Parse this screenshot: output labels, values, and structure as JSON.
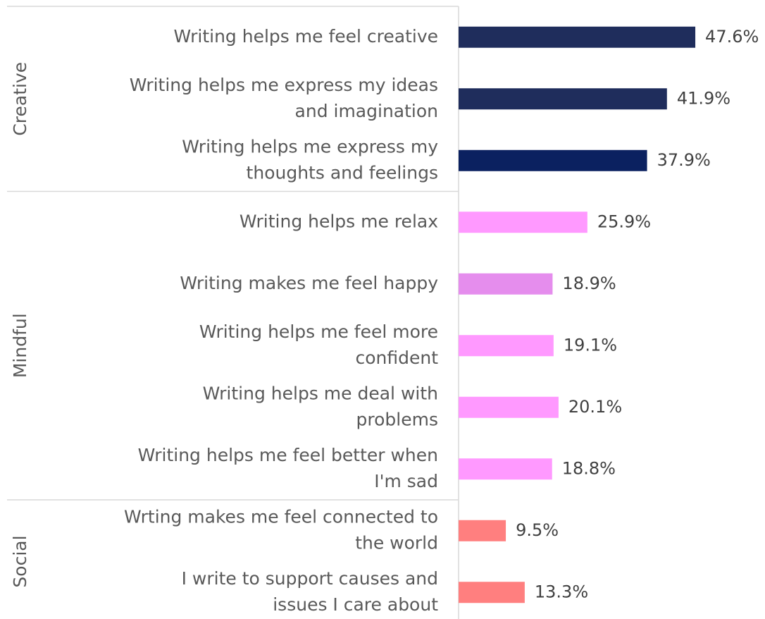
{
  "chart_data": {
    "type": "bar",
    "orientation": "horizontal",
    "title": "",
    "xlabel": "",
    "ylabel": "",
    "value_suffix": "%",
    "xlim": [
      0,
      50
    ],
    "grid": false,
    "legend": "none",
    "groups": [
      {
        "name": "Creative",
        "color": "#1f2d5c",
        "items": [
          {
            "label": "Writing helps me feel creative",
            "value": 47.6,
            "color": "#1f2d5c"
          },
          {
            "label": "Writing helps me express my ideas and imagination",
            "value": 41.9,
            "color": "#1f2d5c"
          },
          {
            "label": "Writing helps me express my thoughts and feelings",
            "value": 37.9,
            "color": "#0b2160"
          }
        ]
      },
      {
        "name": "Mindful",
        "color": "#ff99ff",
        "items": [
          {
            "label": "Writing helps me relax",
            "value": 25.9,
            "color": "#ff99ff"
          },
          {
            "label": "Writing makes me feel happy",
            "value": 18.9,
            "color": "#e58ded"
          },
          {
            "label": "Writing helps me feel more confident",
            "value": 19.1,
            "color": "#ff99ff"
          },
          {
            "label": "Writing helps me deal with problems",
            "value": 20.1,
            "color": "#ff99ff"
          },
          {
            "label": "Writing helps me feel better when I'm sad",
            "value": 18.8,
            "color": "#ff99ff"
          }
        ]
      },
      {
        "name": "Social",
        "color": "#ff7f7f",
        "items": [
          {
            "label": "Wrting makes me feel connected to the world",
            "value": 9.5,
            "color": "#ff7f7f"
          },
          {
            "label": "I write to support causes and issues I care about",
            "value": 13.3,
            "color": "#ff7f7f"
          }
        ]
      }
    ]
  }
}
